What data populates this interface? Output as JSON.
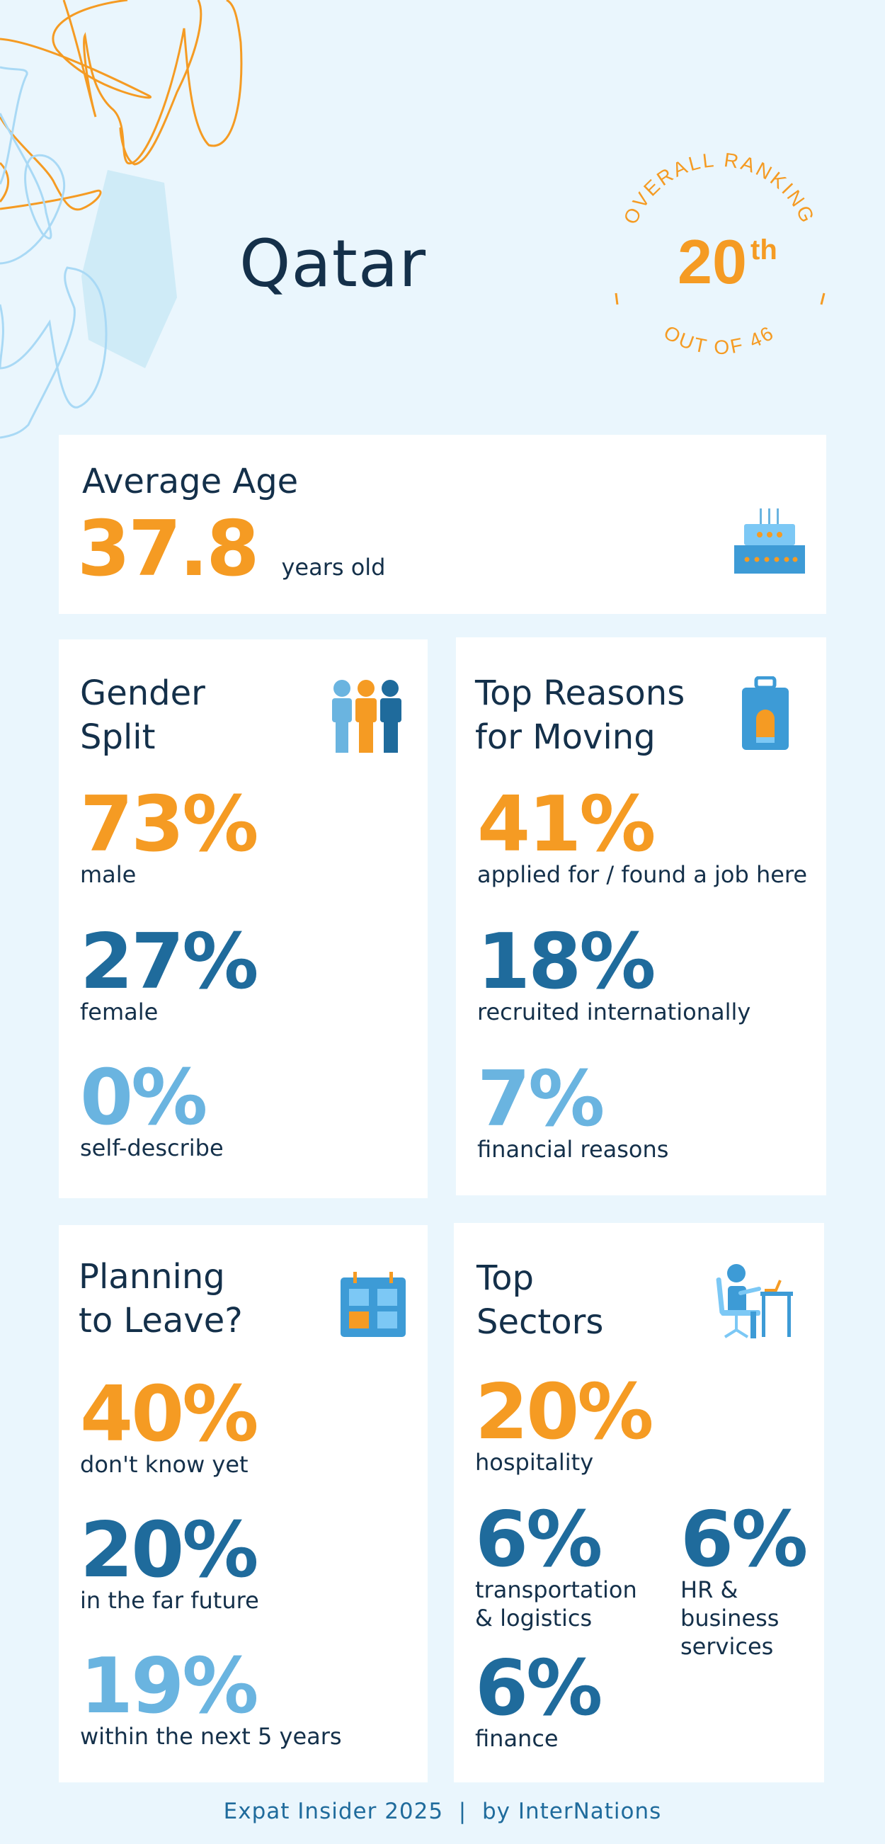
{
  "header": {
    "country": "Qatar",
    "ranking": {
      "label_top": "OVERALL RANKING",
      "rank": "20",
      "suffix": "th",
      "label_bottom": "OUT OF 46"
    }
  },
  "average_age": {
    "title": "Average Age",
    "value": "37.8",
    "unit": "years old",
    "icon": "birthday-cake-icon"
  },
  "gender_split": {
    "title_line1": "Gender",
    "title_line2": "Split",
    "icon": "people-icon",
    "stats": [
      {
        "value": "73%",
        "label": "male"
      },
      {
        "value": "27%",
        "label": "female"
      },
      {
        "value": "0%",
        "label": "self-describe"
      }
    ]
  },
  "top_reasons": {
    "title_line1": "Top Reasons",
    "title_line2": "for Moving",
    "icon": "suitcase-icon",
    "stats": [
      {
        "value": "41%",
        "label": "applied for / found a job here"
      },
      {
        "value": "18%",
        "label": "recruited internationally"
      },
      {
        "value": "7%",
        "label": "financial reasons"
      }
    ]
  },
  "planning_to_leave": {
    "title_line1": "Planning",
    "title_line2": "to Leave?",
    "icon": "calendar-icon",
    "stats": [
      {
        "value": "40%",
        "label": "don't know yet"
      },
      {
        "value": "20%",
        "label": "in the far future"
      },
      {
        "value": "19%",
        "label": "within the next 5 years"
      }
    ]
  },
  "top_sectors": {
    "title_line1": "Top",
    "title_line2": "Sectors",
    "icon": "person-at-desk-icon",
    "stats": [
      {
        "value": "20%",
        "label": "hospitality"
      },
      {
        "value": "6%",
        "label_line1": "transportation",
        "label_line2": "& logistics"
      },
      {
        "value": "6%",
        "label_line1": "HR &",
        "label_line2": "business",
        "label_line3": "services"
      },
      {
        "value": "6%",
        "label": "finance"
      }
    ]
  },
  "footer": {
    "text": "Expat Insider 2025  |  by InterNations"
  },
  "colors": {
    "orange": "#F59B23",
    "dark_blue": "#1F6B9C",
    "light_blue": "#6AB4E0",
    "navy": "#14304A",
    "background": "#EAF6FD"
  }
}
